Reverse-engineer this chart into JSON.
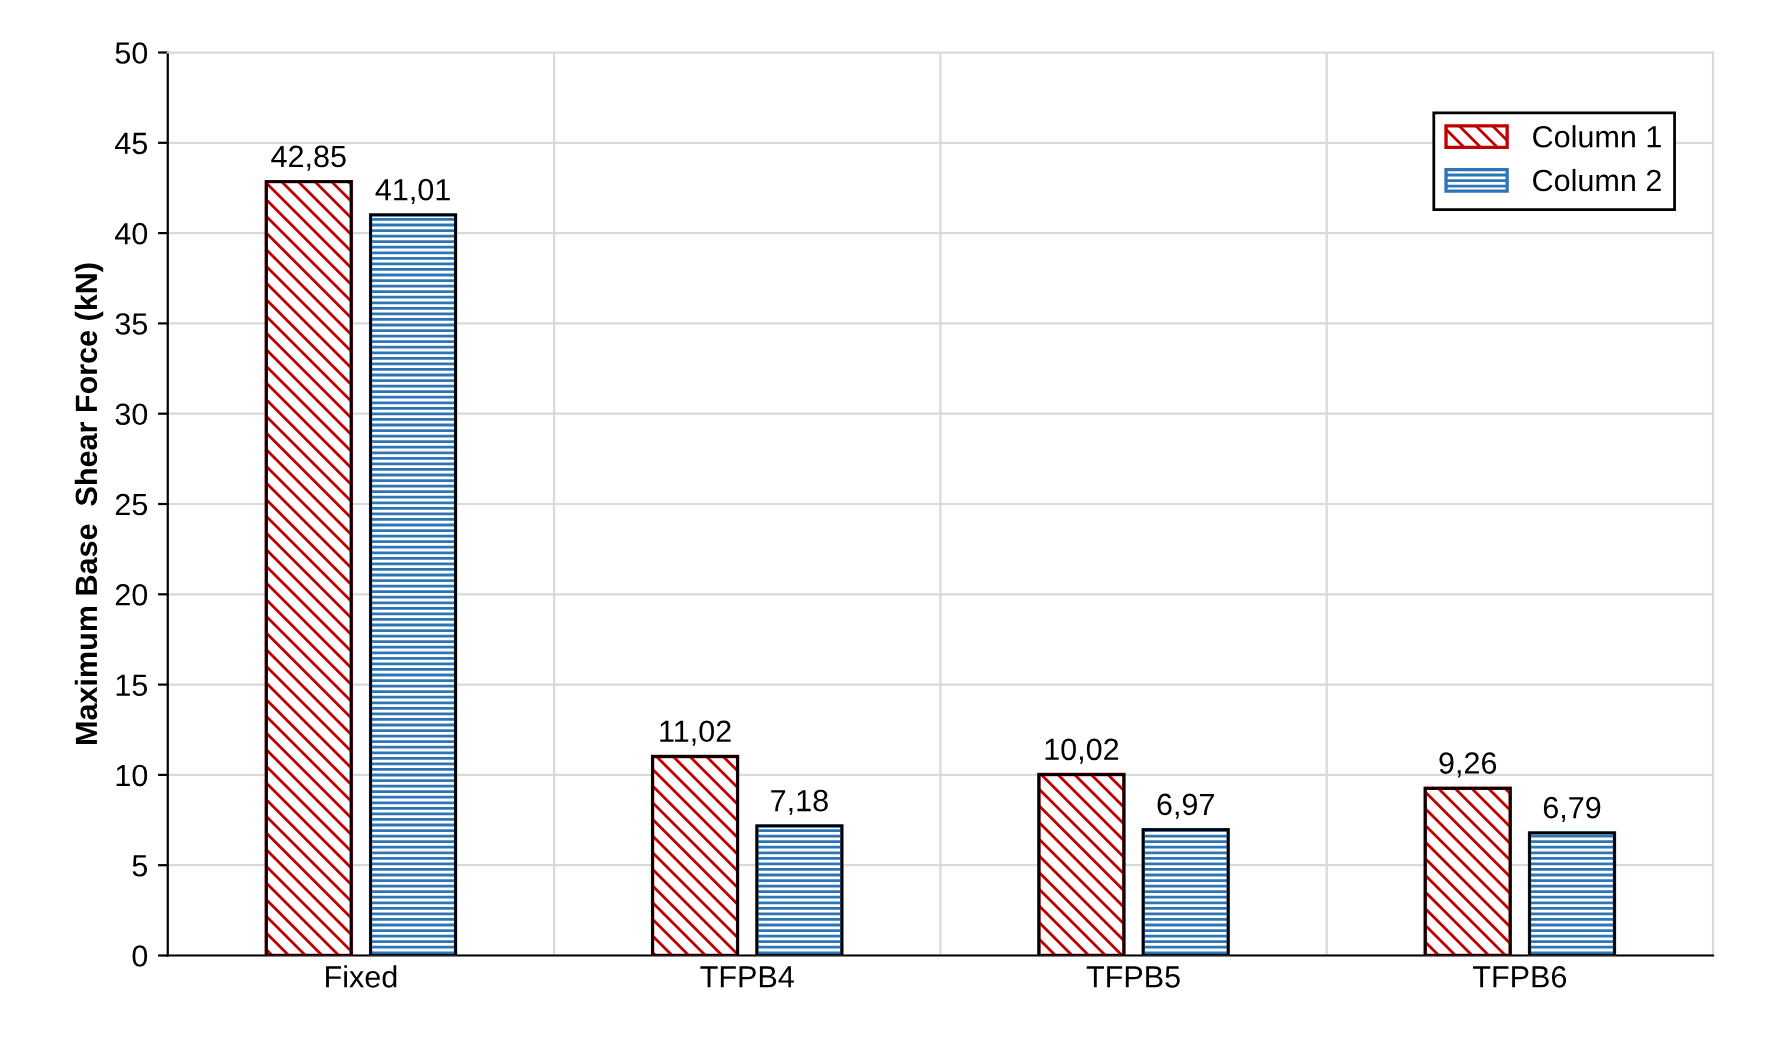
{
  "chart_data": {
    "type": "bar",
    "ylabel": "Maximum Base  Shear Force (kN)",
    "categories": [
      "Fixed",
      "TFPB4",
      "TFPB5",
      "TFPB6"
    ],
    "series": [
      {
        "name": "Column 1",
        "color": "#c00000",
        "values": [
          42.85,
          11.02,
          10.02,
          9.26
        ],
        "value_labels": [
          "42,85",
          "11,02",
          "10,02",
          "9,26"
        ]
      },
      {
        "name": "Column 2",
        "color": "#2e75b6",
        "values": [
          41.01,
          7.18,
          6.97,
          6.79
        ],
        "value_labels": [
          "41,01",
          "7,18",
          "6,97",
          "6,79"
        ]
      }
    ],
    "ylim": [
      0,
      50
    ],
    "yticks": [
      0,
      5,
      10,
      15,
      20,
      25,
      30,
      35,
      40,
      45,
      50
    ],
    "grid": "y",
    "legend": "top right"
  }
}
